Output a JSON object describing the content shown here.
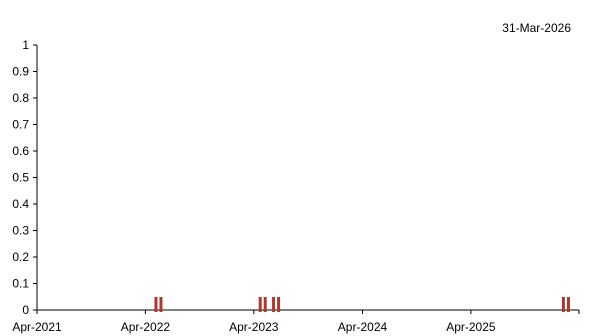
{
  "header": {
    "date": "31-Mar-2026"
  },
  "chart_data": {
    "type": "scatter",
    "title": "",
    "xlabel": "",
    "ylabel": "",
    "x_ticks": [
      "Apr-2021",
      "Apr-2022",
      "Apr-2023",
      "Apr-2024",
      "Apr-2025"
    ],
    "x_tick_dates": [
      "2021-04-01",
      "2022-04-01",
      "2023-04-01",
      "2024-04-01",
      "2025-04-01"
    ],
    "xlim": [
      "2021-04-01",
      "2026-03-31"
    ],
    "y_ticks": [
      "0",
      "0.1",
      "0.2",
      "0.3",
      "0.4",
      "0.5",
      "0.6",
      "0.7",
      "0.8",
      "0.9",
      "1"
    ],
    "ylim": [
      0,
      1
    ],
    "grid": false,
    "series": [
      {
        "marker": "double-bar",
        "color": "#a93a2c",
        "points": [
          {
            "x": "2022-05-15",
            "y": 0
          },
          {
            "x": "2023-05-01",
            "y": 0
          },
          {
            "x": "2023-06-15",
            "y": 0
          },
          {
            "x": "2026-02-15",
            "y": 0
          }
        ]
      }
    ]
  }
}
